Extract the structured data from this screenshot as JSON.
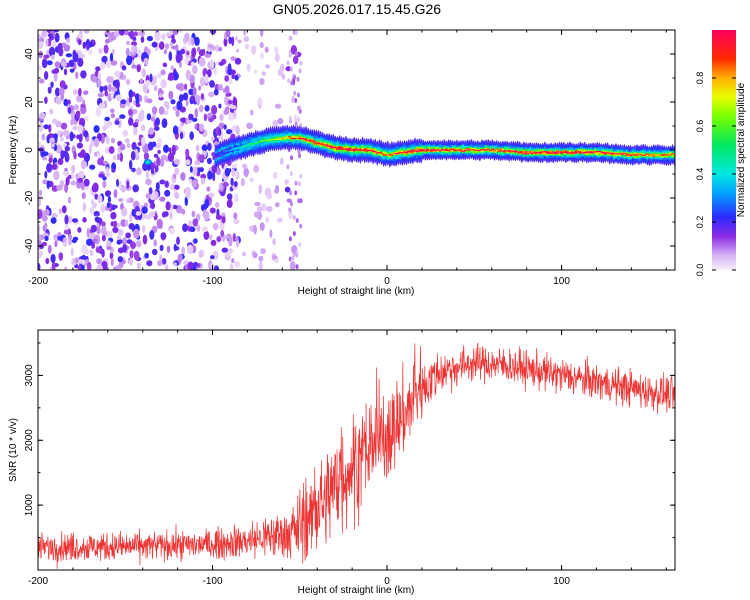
{
  "title": "GN05.2026.017.15.45.G26",
  "chart_data": [
    {
      "type": "heatmap",
      "xlabel": "Height of straight line (km)",
      "ylabel": "Frequency (Hz)",
      "xlim": [
        -200,
        165
      ],
      "ylim": [
        -50,
        50
      ],
      "xticks": [
        -200,
        -100,
        0,
        100
      ],
      "yticks": [
        -40,
        -20,
        0,
        20,
        40
      ],
      "colorbar": {
        "label": "Normalized spectral amplitude",
        "range": [
          0,
          1
        ],
        "ticks": [
          0.0,
          0.2,
          0.4,
          0.6,
          0.8
        ]
      },
      "ridge": {
        "description_points_x": [
          -100,
          -90,
          -80,
          -70,
          -60,
          -50,
          -40,
          -30,
          -20,
          -10,
          0,
          20,
          40,
          60,
          80,
          100,
          120,
          140,
          165
        ],
        "frequency_hz": [
          -3,
          0,
          2,
          4,
          5,
          5,
          3,
          1,
          0,
          0,
          -2,
          0,
          0,
          0,
          -1,
          -1,
          -1,
          -2,
          -2
        ],
        "peak_amplitude": [
          0.2,
          0.3,
          0.45,
          0.55,
          0.7,
          0.85,
          0.9,
          0.95,
          0.95,
          0.9,
          0.8,
          0.95,
          0.9,
          0.85,
          0.95,
          0.95,
          0.95,
          0.85,
          0.8
        ]
      },
      "noise_region_x": [
        -200,
        -50
      ]
    },
    {
      "type": "line",
      "xlabel": "Height of straight line (km)",
      "ylabel": "SNR (10 * v/v)",
      "xlim": [
        -200,
        165
      ],
      "ylim": [
        0,
        3700
      ],
      "xticks": [
        -200,
        -100,
        0,
        100
      ],
      "yticks": [
        1000,
        2000,
        3000
      ],
      "color": "#ee3333",
      "trend": {
        "x": [
          -200,
          -150,
          -120,
          -100,
          -80,
          -60,
          -50,
          -40,
          -30,
          -20,
          -10,
          0,
          10,
          20,
          30,
          50,
          70,
          90,
          110,
          130,
          150,
          165
        ],
        "y": [
          350,
          360,
          380,
          400,
          450,
          550,
          650,
          900,
          1300,
          1600,
          1900,
          2100,
          2400,
          2800,
          3050,
          3200,
          3150,
          3050,
          2950,
          2850,
          2750,
          2700
        ]
      },
      "noise_amplitude": [
        200,
        200,
        200,
        200,
        250,
        350,
        450,
        600,
        700,
        700,
        700,
        700,
        600,
        400,
        300,
        250,
        250,
        250,
        250,
        250,
        250,
        250
      ]
    }
  ]
}
